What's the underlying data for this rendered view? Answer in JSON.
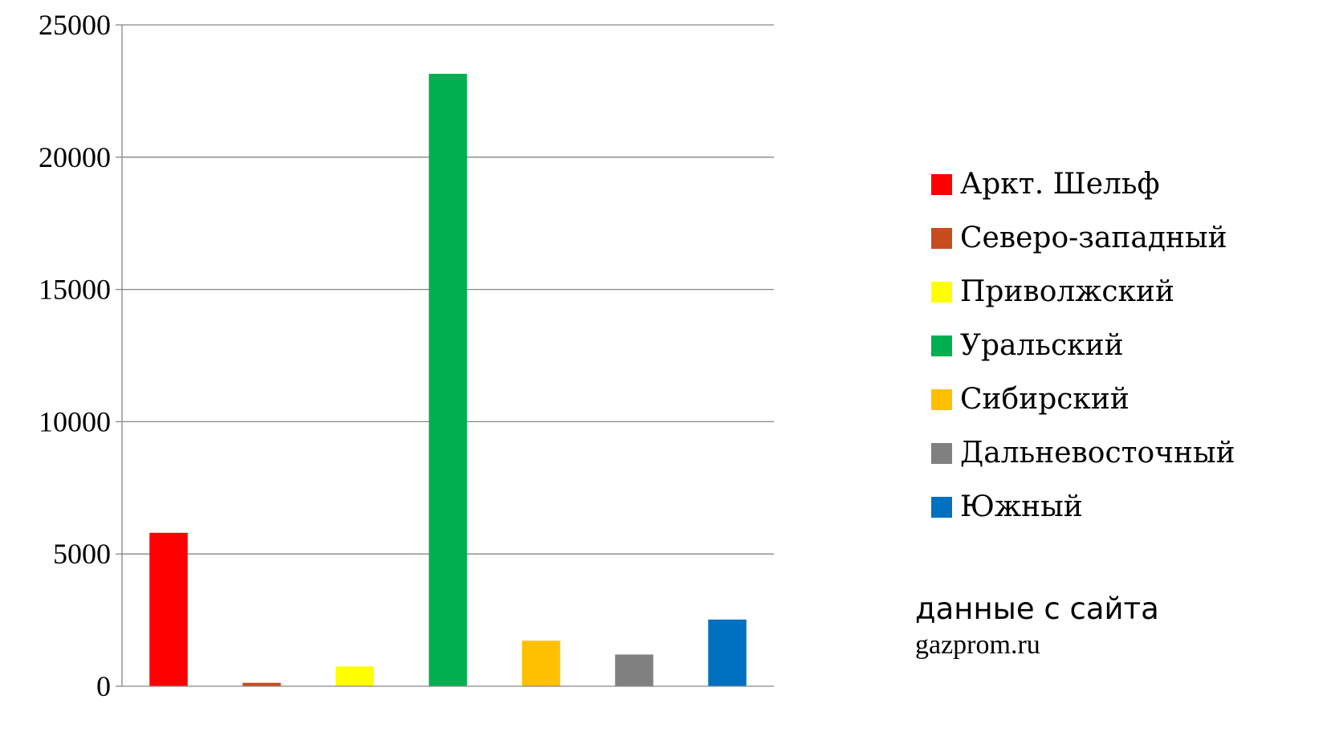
{
  "chart_data": {
    "type": "bar",
    "title": "",
    "xlabel": "",
    "ylabel": "",
    "ylim": [
      0,
      25000
    ],
    "yticks": [
      0,
      5000,
      10000,
      15000,
      20000,
      25000
    ],
    "grid": true,
    "legend_position": "right",
    "categories": [
      "Аркт. Шельф",
      "Северо-западный",
      "Приволжский",
      "Уральский",
      "Сибирский",
      "Дальневосточный",
      "Южный"
    ],
    "values": [
      5800,
      130,
      750,
      23150,
      1720,
      1200,
      2520
    ],
    "colors": [
      "#ff0000",
      "#c84c1e",
      "#ffff00",
      "#00b050",
      "#ffc000",
      "#808080",
      "#0070c0"
    ]
  },
  "note": {
    "line1": "данные с сайта",
    "line2": "gazprom.ru"
  }
}
